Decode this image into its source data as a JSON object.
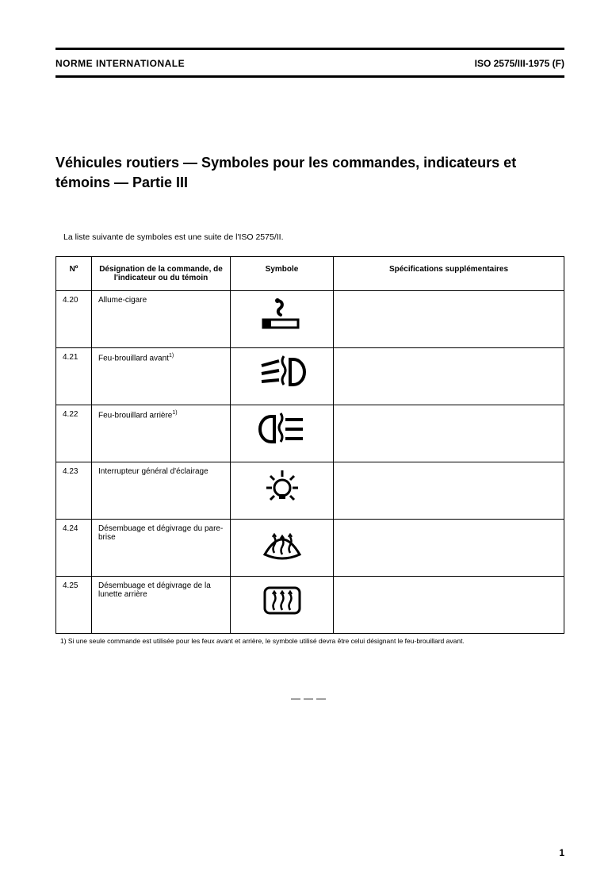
{
  "header": {
    "left": "NORME INTERNATIONALE",
    "right": "ISO 2575/III-1975 (F)"
  },
  "title": "Véhicules routiers — Symboles pour les commandes, indicateurs et témoins — Partie III",
  "intro": "La liste suivante de symboles est une suite de l'ISO 2575/II.",
  "table": {
    "headers": {
      "num": "Nº",
      "designation": "Désignation de la commande, de l'indicateur ou du témoin",
      "symbol": "Symbole",
      "spec": "Spécifications supplémentaires"
    },
    "rows": [
      {
        "num": "4.20",
        "designation": "Allume-cigare",
        "note": "",
        "icon": "cigar",
        "spec": ""
      },
      {
        "num": "4.21",
        "designation": "Feu-brouillard avant",
        "note": "1)",
        "icon": "fog-front",
        "spec": ""
      },
      {
        "num": "4.22",
        "designation": "Feu-brouillard arrière",
        "note": "1)",
        "icon": "fog-rear",
        "spec": ""
      },
      {
        "num": "4.23",
        "designation": "Interrupteur général d'éclairage",
        "note": "",
        "icon": "master-light",
        "spec": ""
      },
      {
        "num": "4.24",
        "designation": "Désembuage et dégivrage du pare-brise",
        "note": "",
        "icon": "defrost-front",
        "spec": ""
      },
      {
        "num": "4.25",
        "designation": "Désembuage et dégivrage de la lunette arrière",
        "note": "",
        "icon": "defrost-rear",
        "spec": ""
      }
    ]
  },
  "footnote": "1)  Si une seule commande est utilisée pour les feux avant et arrière, le symbole utilisé devra être celui désignant le feu-brouillard avant.",
  "page_number": "1",
  "colors": {
    "ink": "#000000",
    "paper": "#ffffff"
  }
}
